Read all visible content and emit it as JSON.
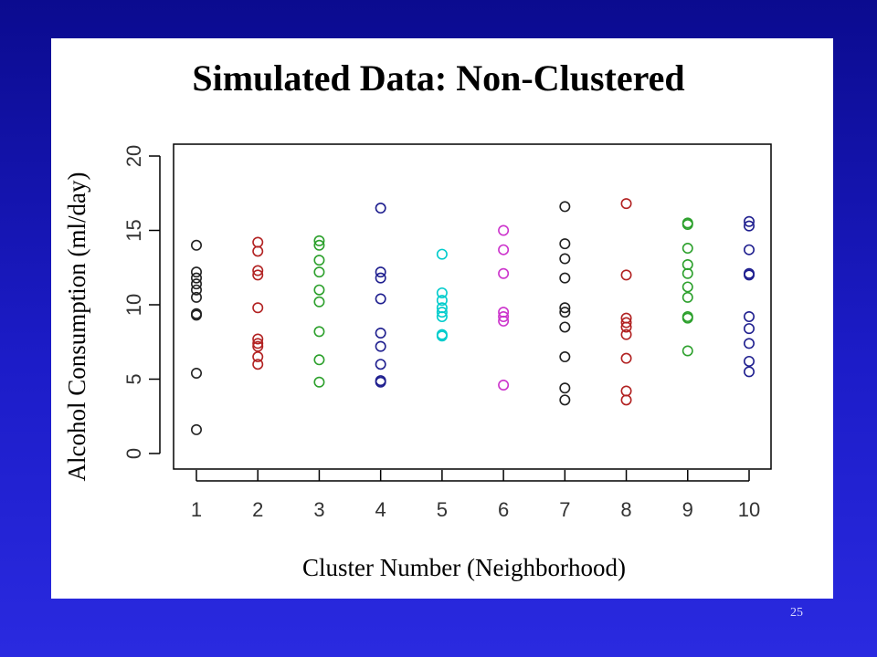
{
  "slide": {
    "title": "Simulated Data: Non-Clustered",
    "page_number": "25"
  },
  "colors": {
    "background": "#1c1cc8",
    "panel": "#ffffff"
  },
  "chart_data": {
    "type": "scatter",
    "title": "Simulated Data: Non-Clustered",
    "xlabel": "Cluster Number (Neighborhood)",
    "ylabel": "Alcohol Consumption (ml/day)",
    "xlim": [
      1,
      10
    ],
    "ylim": [
      0,
      20
    ],
    "x_ticks": [
      1,
      2,
      3,
      4,
      5,
      6,
      7,
      8,
      9,
      10
    ],
    "y_ticks": [
      0,
      5,
      10,
      15,
      20
    ],
    "grid": false,
    "marker": "open-circle",
    "series": [
      {
        "x": 1,
        "color": "#222222",
        "values": [
          14.0,
          12.2,
          11.8,
          11.4,
          11.0,
          10.5,
          9.4,
          9.3,
          5.4,
          1.6
        ]
      },
      {
        "x": 2,
        "color": "#b22222",
        "values": [
          14.2,
          13.6,
          12.3,
          12.0,
          9.8,
          7.7,
          7.4,
          7.2,
          6.5,
          6.0
        ]
      },
      {
        "x": 3,
        "color": "#2ca02c",
        "values": [
          14.3,
          14.0,
          13.0,
          12.2,
          11.0,
          10.2,
          8.2,
          6.3,
          4.8
        ]
      },
      {
        "x": 4,
        "color": "#1f1f8f",
        "values": [
          16.5,
          12.2,
          11.8,
          10.4,
          8.1,
          7.2,
          6.0,
          4.9,
          4.8
        ]
      },
      {
        "x": 5,
        "color": "#00cccc",
        "values": [
          13.4,
          10.8,
          10.3,
          9.8,
          9.5,
          9.2,
          8.0,
          7.9
        ]
      },
      {
        "x": 6,
        "color": "#cc33cc",
        "values": [
          15.0,
          13.7,
          12.1,
          9.5,
          9.2,
          8.9,
          4.6
        ]
      },
      {
        "x": 7,
        "color": "#222222",
        "values": [
          16.6,
          14.1,
          13.1,
          11.8,
          9.8,
          9.5,
          8.5,
          6.5,
          4.4,
          3.6
        ]
      },
      {
        "x": 8,
        "color": "#b22222",
        "values": [
          16.8,
          12.0,
          9.1,
          8.8,
          8.5,
          8.0,
          6.4,
          4.2,
          3.6
        ]
      },
      {
        "x": 9,
        "color": "#2ca02c",
        "values": [
          15.5,
          15.4,
          13.8,
          12.7,
          12.1,
          11.2,
          10.5,
          9.2,
          9.1,
          6.9
        ]
      },
      {
        "x": 10,
        "color": "#1f1f8f",
        "values": [
          15.6,
          15.3,
          13.7,
          12.1,
          12.0,
          9.2,
          8.4,
          7.4,
          6.2,
          5.5
        ]
      }
    ]
  }
}
